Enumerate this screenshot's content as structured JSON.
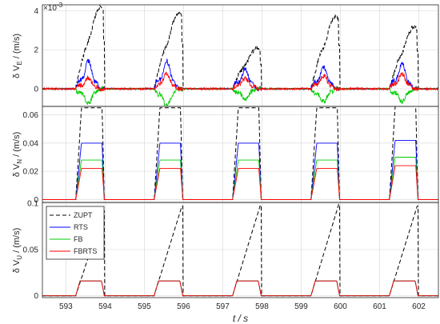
{
  "chart_data": [
    {
      "type": "line",
      "ylabel": "δ V_E / (m/s)",
      "exponent": "×10",
      "exponent_power": "-3",
      "ylim": [
        -0.9,
        4.3
      ],
      "yticks": [
        "0",
        "2",
        "4"
      ],
      "ytick_values": [
        0,
        2,
        4
      ],
      "xlim": [
        592.4,
        602.5
      ],
      "xticks": [
        593,
        594,
        595,
        596,
        597,
        598,
        599,
        600,
        601,
        602
      ],
      "grid": true,
      "zupt_intervals": [
        [
          593.25,
          593.98
        ],
        [
          595.25,
          595.98
        ],
        [
          597.25,
          597.98
        ],
        [
          599.25,
          599.98
        ],
        [
          601.25,
          601.98
        ]
      ],
      "series": [
        {
          "key": "zupt",
          "color": "#000000",
          "dash": "dashed",
          "peaks": [
            4.2,
            3.9,
            2.1,
            3.7,
            3.2
          ]
        },
        {
          "key": "rts",
          "color": "#0000ff",
          "peaks": [
            1.3,
            1.3,
            0.9,
            1.0,
            1.2
          ]
        },
        {
          "key": "fb",
          "color": "#00cc00",
          "peaks": [
            -0.7,
            -0.8,
            -0.5,
            -0.6,
            -0.6
          ]
        },
        {
          "key": "fbrts",
          "color": "#ff0000",
          "peaks": [
            0.5,
            0.7,
            0.5,
            0.6,
            0.7
          ]
        }
      ]
    },
    {
      "type": "line",
      "ylabel": "δ V_N / (m/s)",
      "ylim": [
        -0.002,
        0.066
      ],
      "yticks": [
        "0",
        "0.02",
        "0.04",
        "0.06"
      ],
      "ytick_values": [
        0,
        0.02,
        0.04,
        0.06
      ],
      "xlim": [
        592.4,
        602.5
      ],
      "xticks": [
        593,
        594,
        595,
        596,
        597,
        598,
        599,
        600,
        601,
        602
      ],
      "grid": true,
      "zupt_intervals": [
        [
          593.25,
          593.98
        ],
        [
          595.25,
          595.98
        ],
        [
          597.25,
          597.98
        ],
        [
          599.25,
          599.98
        ],
        [
          601.25,
          601.98
        ]
      ],
      "series": [
        {
          "key": "zupt",
          "color": "#000000",
          "dash": "dashed",
          "plateaus": [
            0.065,
            0.065,
            0.065,
            0.065,
            0.066
          ]
        },
        {
          "key": "rts",
          "color": "#0000ff",
          "plateaus": [
            0.04,
            0.04,
            0.04,
            0.04,
            0.042
          ]
        },
        {
          "key": "fb",
          "color": "#00cc00",
          "plateaus": [
            0.028,
            0.028,
            0.028,
            0.028,
            0.03
          ]
        },
        {
          "key": "fbrts",
          "color": "#ff0000",
          "plateaus": [
            0.022,
            0.022,
            0.022,
            0.022,
            0.024
          ]
        }
      ]
    },
    {
      "type": "line",
      "ylabel": "δ V_U / (m/s)",
      "ylim": [
        -0.002,
        0.101
      ],
      "yticks": [
        "0",
        "0.05",
        "0.1"
      ],
      "ytick_values": [
        0,
        0.05,
        0.1
      ],
      "xlim": [
        592.4,
        602.5
      ],
      "xticks": [
        "593",
        "594",
        "595",
        "596",
        "597",
        "598",
        "599",
        "600",
        "601",
        "602"
      ],
      "xtick_values": [
        593,
        594,
        595,
        596,
        597,
        598,
        599,
        600,
        601,
        602
      ],
      "xlabel": "t / s",
      "grid": true,
      "legend": "top-left",
      "zupt_intervals": [
        [
          593.25,
          593.98
        ],
        [
          595.25,
          595.98
        ],
        [
          597.25,
          597.98
        ],
        [
          599.25,
          599.98
        ],
        [
          601.25,
          601.98
        ]
      ],
      "series": [
        {
          "key": "zupt",
          "name": "ZUPT",
          "color": "#000000",
          "dash": "dashed",
          "ramp_end": [
            0.092,
            0.097,
            0.098,
            0.099,
            0.097
          ]
        },
        {
          "key": "rts",
          "name": "RTS",
          "color": "#0000ff",
          "plateaus": [
            0.016,
            0.016,
            0.016,
            0.016,
            0.016
          ]
        },
        {
          "key": "fb",
          "name": "FB",
          "color": "#00cc00",
          "plateaus": [
            0.016,
            0.016,
            0.016,
            0.016,
            0.016
          ]
        },
        {
          "key": "fbrts",
          "name": "FBRTS",
          "color": "#ff0000",
          "plateaus": [
            0.016,
            0.016,
            0.016,
            0.016,
            0.016
          ]
        }
      ]
    }
  ]
}
